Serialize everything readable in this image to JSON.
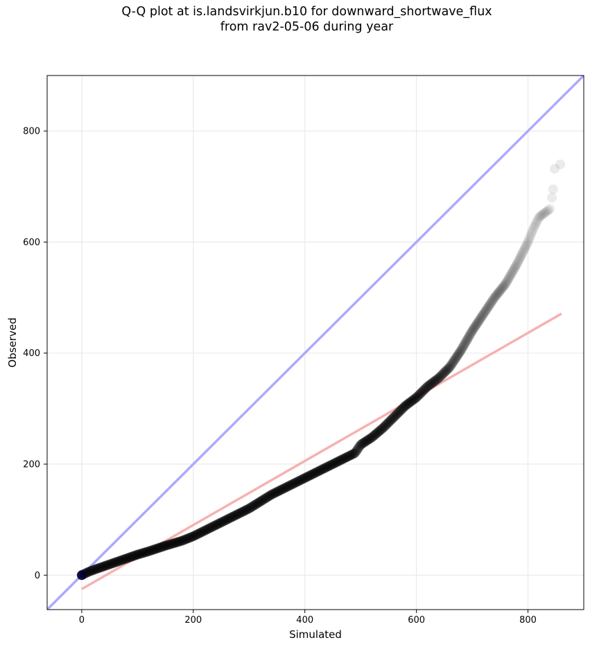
{
  "chart_data": {
    "type": "scatter",
    "title": "Q-Q plot at is.landsvirkjun.b10 for downward_shortwave_flux",
    "subtitle": "from rav2-05-06 during year",
    "xlabel": "Simulated",
    "ylabel": "Observed",
    "xlim": [
      -62,
      900
    ],
    "ylim": [
      -62,
      900
    ],
    "xticks": [
      0,
      200,
      400,
      600,
      800
    ],
    "yticks": [
      0,
      200,
      400,
      600,
      800
    ],
    "grid": true,
    "reference_line": {
      "color": "#aaaaff",
      "slope": 1,
      "intercept": 0
    },
    "fit_line": {
      "color": "#f5a8a8",
      "x": [
        0,
        860
      ],
      "y": [
        -25,
        471
      ]
    },
    "points_color": "#000000",
    "quantiles": {
      "x": [
        0,
        10,
        20,
        40,
        60,
        80,
        100,
        120,
        150,
        180,
        200,
        230,
        260,
        300,
        340,
        380,
        420,
        460,
        490,
        500,
        520,
        540,
        560,
        580,
        600,
        620,
        640,
        660,
        680,
        700,
        720,
        740,
        760,
        780,
        800,
        810,
        820,
        840
      ],
      "y": [
        0,
        5,
        9,
        16,
        23,
        30,
        37,
        43,
        53,
        62,
        70,
        85,
        100,
        120,
        145,
        165,
        185,
        205,
        220,
        235,
        248,
        265,
        285,
        305,
        320,
        340,
        355,
        375,
        405,
        440,
        470,
        500,
        525,
        560,
        600,
        625,
        645,
        660
      ]
    },
    "tail_points": {
      "x": [
        843,
        845,
        848,
        858
      ],
      "y": [
        680,
        695,
        732,
        740
      ]
    }
  }
}
